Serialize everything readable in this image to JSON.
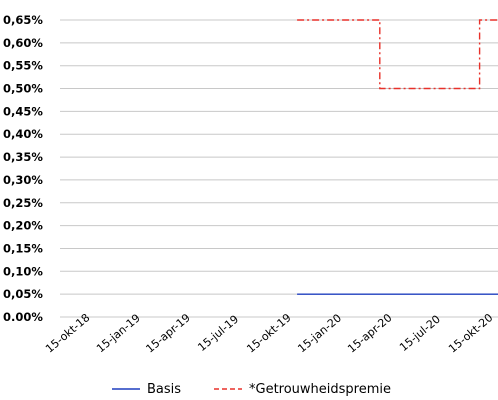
{
  "chart_data": {
    "type": "line",
    "title": "",
    "xlabel": "",
    "ylabel": "",
    "x_ticks": [
      "15-okt-18",
      "15-jan-19",
      "15-apr-19",
      "15-jul-19",
      "15-okt-19",
      "15-jan-20",
      "15-apr-20",
      "15-jul-20",
      "15-okt-20"
    ],
    "y_ticks": [
      "0.00%",
      "0,05%",
      "0,10%",
      "0,15%",
      "0,20%",
      "0,25%",
      "0,30%",
      "0,35%",
      "0,40%",
      "0,45%",
      "0,50%",
      "0,55%",
      "0,60%",
      "0,65%"
    ],
    "ylim": [
      0,
      0.65
    ],
    "grid": true,
    "legend_position": "bottom",
    "series": [
      {
        "name": "Basis",
        "color": "#1f3fbf",
        "style": "solid",
        "points": [
          [
            "2019-12-01",
            0.05
          ],
          [
            "2020-12-31",
            0.05
          ]
        ]
      },
      {
        "name": "*Getrouwheidspremie",
        "color": "#e8312a",
        "style": "dashed",
        "points": [
          [
            "2019-12-01",
            0.65
          ],
          [
            "2020-04-29",
            0.65
          ],
          [
            "2020-04-29",
            0.5
          ],
          [
            "2020-10-27",
            0.5
          ],
          [
            "2020-10-27",
            0.65
          ],
          [
            "2020-12-31",
            0.65
          ]
        ]
      }
    ]
  }
}
